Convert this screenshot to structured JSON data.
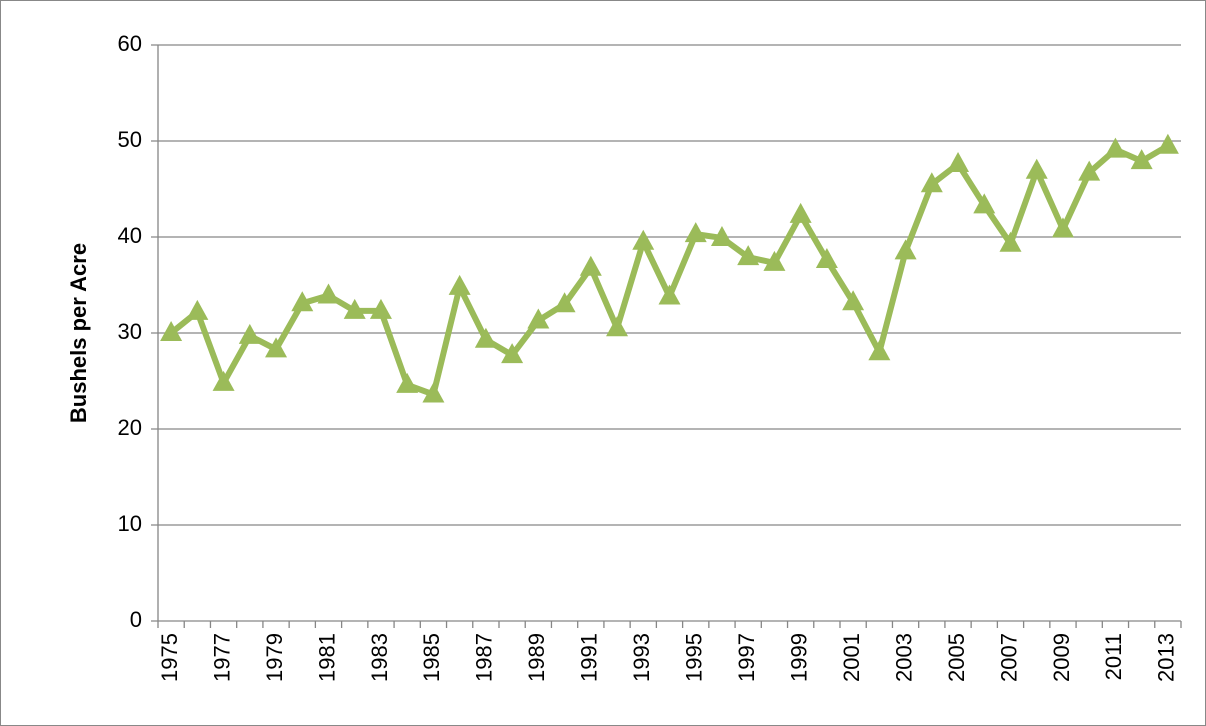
{
  "chart_data": {
    "type": "line",
    "y_label": "Bushels per Acre",
    "categories": [
      "1975",
      null,
      "1977",
      null,
      "1979",
      null,
      "1981",
      null,
      "1983",
      null,
      "1985",
      null,
      "1987",
      null,
      "1989",
      null,
      "1991",
      null,
      "1993",
      null,
      "1995",
      null,
      "1997",
      null,
      "1999",
      null,
      "2001",
      null,
      "2003",
      null,
      "2005",
      null,
      "2007",
      null,
      "2009",
      null,
      "2011",
      null,
      "2013"
    ],
    "series": [
      {
        "color": "#9bbb59",
        "values": [
          30.0,
          32.2,
          24.8,
          29.7,
          28.3,
          33.1,
          33.9,
          32.3,
          32.3,
          24.6,
          23.6,
          34.8,
          29.3,
          27.7,
          31.3,
          33.0,
          36.8,
          30.5,
          39.5,
          33.8,
          40.3,
          39.9,
          37.9,
          37.3,
          42.3,
          37.6,
          33.2,
          28.0,
          38.5,
          45.5,
          47.6,
          43.3,
          39.3,
          46.9,
          40.8,
          46.7,
          49.1,
          47.9,
          49.5
        ]
      }
    ],
    "ylim": [
      0,
      60
    ],
    "yticks": [
      0,
      10,
      20,
      30,
      40,
      50,
      60
    ],
    "grid": true
  }
}
